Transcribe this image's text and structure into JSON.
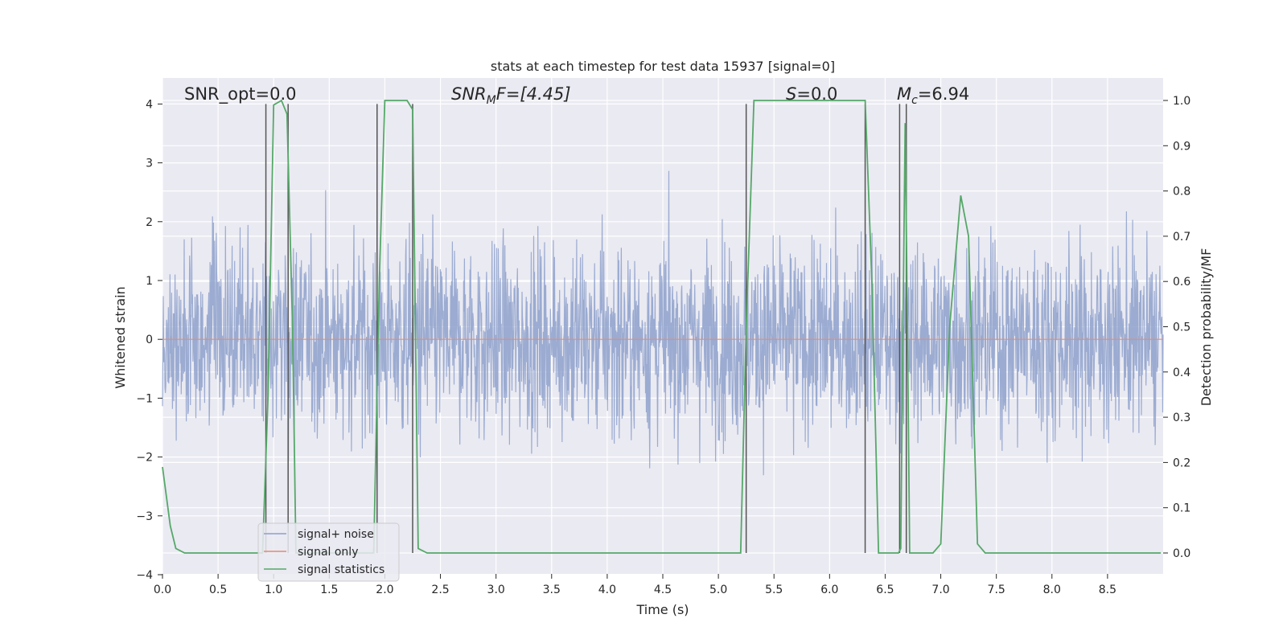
{
  "chart_data": {
    "type": "line",
    "title": "stats at each timestep for test data 15937 [signal=0]",
    "xlabel": "Time (s)",
    "ylabel": "Whitened strain",
    "ylabel_right": "Detection probability/MF",
    "xlim": [
      0.0,
      9.0
    ],
    "ylim": [
      -4,
      4.4
    ],
    "ylim_right": [
      -0.05,
      1.04
    ],
    "x_ticks": [
      "0.0",
      "0.5",
      "1.0",
      "1.5",
      "2.0",
      "2.5",
      "3.0",
      "3.5",
      "4.0",
      "4.5",
      "5.0",
      "5.5",
      "6.0",
      "6.5",
      "7.0",
      "7.5",
      "8.0",
      "8.5"
    ],
    "y_ticks": [
      "−4",
      "−3",
      "−2",
      "−1",
      "0",
      "1",
      "2",
      "3",
      "4"
    ],
    "y_right_ticks": [
      "0.0",
      "0.1",
      "0.2",
      "0.3",
      "0.4",
      "0.5",
      "0.6",
      "0.7",
      "0.8",
      "0.9",
      "1.0"
    ],
    "grid": true,
    "legend_position": "lower-left",
    "annotations": {
      "snr_opt": "SNR_opt=0.0",
      "snr_mf_base": "SNR",
      "snr_mf_sub": "M",
      "snr_mf_rest": "F=[4.45]",
      "s_base": "S",
      "s_rest": "=0.0",
      "mc_base": "M",
      "mc_sub": "c",
      "mc_rest": "=6.94"
    },
    "series": [
      {
        "name": "signal+ noise",
        "color": "#8da0cb",
        "axis": "left",
        "note": "dense noisy whitened strain, roughly within [-3.6, 3.7]",
        "value_range": [
          -3.6,
          3.75
        ]
      },
      {
        "name": "signal only",
        "color": "#e58a6f",
        "axis": "left",
        "x": [
          0.0,
          9.0
        ],
        "y": [
          0.0,
          0.0
        ]
      },
      {
        "name": "signal statistics",
        "color": "#55a868",
        "axis": "right",
        "x": [
          0.0,
          0.07,
          0.12,
          0.2,
          0.9,
          0.95,
          1.0,
          1.07,
          1.12,
          1.17,
          1.2,
          1.9,
          1.95,
          2.0,
          2.05,
          2.2,
          2.25,
          2.3,
          2.38,
          5.15,
          5.2,
          5.25,
          5.32,
          6.32,
          6.38,
          6.44,
          6.5,
          6.62,
          6.64,
          6.66,
          6.68,
          6.7,
          6.72,
          6.8,
          6.93,
          7.0,
          7.08,
          7.18,
          7.25,
          7.33,
          7.4,
          8.5,
          8.6,
          8.98
        ],
        "y": [
          0.19,
          0.06,
          0.01,
          0.0,
          0.0,
          0.35,
          0.99,
          1.0,
          0.97,
          0.5,
          0.0,
          0.0,
          0.6,
          1.0,
          1.0,
          1.0,
          0.98,
          0.01,
          0.0,
          0.0,
          0.0,
          0.5,
          1.0,
          1.0,
          0.6,
          0.0,
          0.0,
          0.0,
          0.01,
          0.5,
          0.95,
          0.5,
          0.0,
          0.0,
          0.0,
          0.02,
          0.5,
          0.79,
          0.7,
          0.02,
          0.0,
          0.0,
          0.0,
          0.0
        ]
      }
    ],
    "vertical_markers": [
      0.93,
      1.13,
      1.93,
      2.25,
      5.25,
      6.32,
      6.63,
      6.69
    ]
  }
}
